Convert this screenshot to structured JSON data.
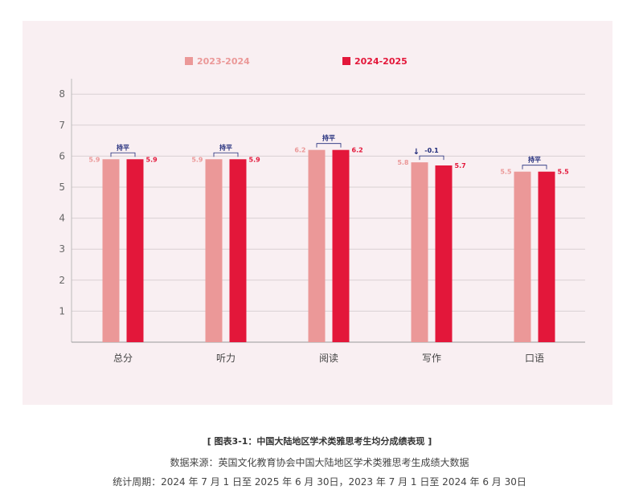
{
  "colors": {
    "series_2023": "#eb9898",
    "series_2024": "#e3173a",
    "note": "#1f2a7a",
    "grid": "#d9d0d3",
    "axis_text": "#666666"
  },
  "chart_data": {
    "type": "bar",
    "categories": [
      "总分",
      "听力",
      "阅读",
      "写作",
      "口语"
    ],
    "series": [
      {
        "name": "2023-2024",
        "values": [
          5.9,
          5.9,
          6.2,
          5.8,
          5.5
        ]
      },
      {
        "name": "2024-2025",
        "values": [
          5.9,
          5.9,
          6.2,
          5.7,
          5.5
        ]
      }
    ],
    "ylim": [
      0,
      8.5
    ],
    "yticks": [
      "1",
      "2",
      "3",
      "4",
      "5",
      "6",
      "7",
      "8"
    ],
    "grid": true,
    "legend_position": "top",
    "annotations": [
      {
        "text": "持平",
        "arrow": ""
      },
      {
        "text": "持平",
        "arrow": ""
      },
      {
        "text": "持平",
        "arrow": ""
      },
      {
        "text": "-0.1",
        "arrow": "↓"
      },
      {
        "text": "持平",
        "arrow": ""
      }
    ]
  },
  "caption": {
    "title": "[ 图表3-1：中国大陆地区学术类雅思考生均分成绩表现 ]",
    "source": "数据来源：英国文化教育协会中国大陆地区学术类雅思考生成绩大数据",
    "period": "统计周期：2024 年 7 月 1 日至 2025 年 6 月 30日，2023 年 7 月 1 日至 2024 年 6 月 30日"
  }
}
